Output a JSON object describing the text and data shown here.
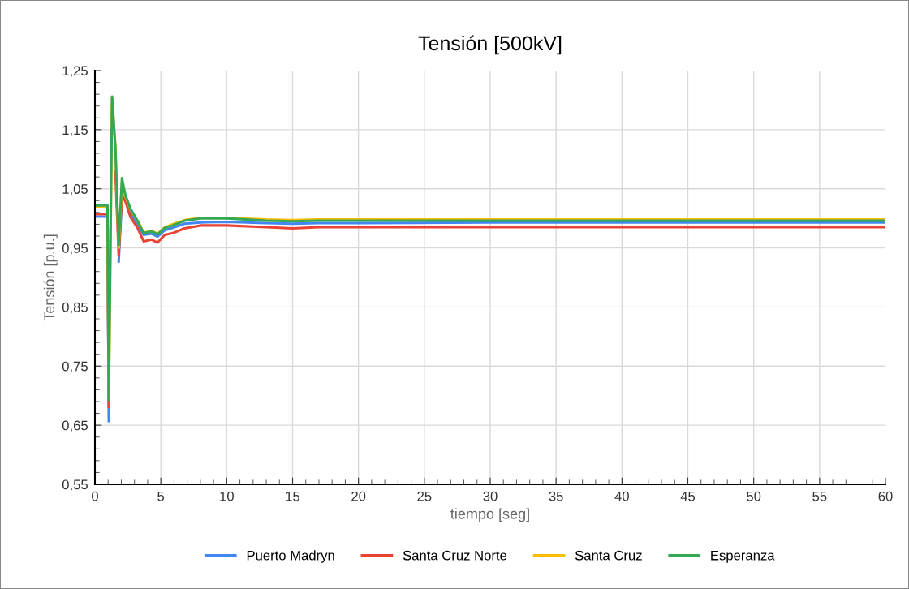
{
  "chart_data": {
    "type": "line",
    "title": "Tensión [500kV]",
    "xlabel": "tiempo [seg]",
    "ylabel": "Tensión [p.u.]",
    "x": [
      0,
      0.95,
      1.05,
      1.3,
      1.55,
      1.8,
      2.05,
      2.3,
      2.7,
      3.25,
      3.7,
      4.3,
      4.75,
      5.3,
      5.9,
      6.8,
      8,
      10,
      13,
      15,
      17,
      20,
      30,
      40,
      50,
      60
    ],
    "series": [
      {
        "name": "Puerto Madryn",
        "color": "#4285f4",
        "values": [
          1.003,
          1.003,
          0.657,
          null,
          null,
          0.927,
          1.035,
          1.03,
          1.008,
          0.99,
          0.972,
          0.974,
          0.969,
          0.98,
          0.984,
          0.991,
          0.993,
          0.994,
          0.992,
          0.991,
          0.992,
          0.992,
          0.993,
          0.993,
          0.993,
          0.993
        ]
      },
      {
        "name": "Santa Cruz Norte",
        "color": "#ea4335",
        "values": [
          1.007,
          1.007,
          0.681,
          null,
          1.08,
          0.937,
          1.04,
          1.03,
          1.002,
          0.983,
          0.961,
          0.964,
          0.959,
          0.972,
          0.975,
          0.983,
          0.988,
          0.988,
          0.985,
          0.983,
          0.985,
          0.985,
          0.985,
          0.985,
          0.985,
          0.985
        ]
      },
      {
        "name": "Santa Cruz",
        "color": "#fbbc04",
        "values": [
          1.02,
          1.02,
          0.695,
          1.205,
          1.12,
          0.95,
          1.062,
          1.038,
          1.015,
          0.995,
          0.976,
          0.979,
          0.974,
          0.985,
          0.99,
          0.997,
          1.001,
          1.001,
          0.998,
          0.997,
          0.998,
          0.998,
          0.998,
          0.998,
          0.998,
          0.998
        ]
      },
      {
        "name": "Esperanza",
        "color": "#34a853",
        "values": [
          1.022,
          1.022,
          0.693,
          1.206,
          1.12,
          0.955,
          1.068,
          1.04,
          1.016,
          0.995,
          0.975,
          0.978,
          0.973,
          0.984,
          0.988,
          0.996,
          1.0,
          1.0,
          0.996,
          0.995,
          0.996,
          0.996,
          0.996,
          0.996,
          0.996,
          0.996
        ]
      }
    ],
    "xlim": [
      0,
      60
    ],
    "xticks": [
      0,
      5,
      10,
      15,
      20,
      25,
      30,
      35,
      40,
      45,
      50,
      55,
      60
    ],
    "ylim": [
      0.55,
      1.25
    ],
    "yticks": [
      {
        "value": 0.55,
        "label": "0,55"
      },
      {
        "value": 0.65,
        "label": "0,65"
      },
      {
        "value": 0.75,
        "label": "0,75"
      },
      {
        "value": 0.85,
        "label": "0,85"
      },
      {
        "value": 0.95,
        "label": "0,95"
      },
      {
        "value": 1.05,
        "label": "1,05"
      },
      {
        "value": 1.15,
        "label": "1,15"
      },
      {
        "value": 1.25,
        "label": "1,25"
      }
    ],
    "grid": true,
    "legend": "bottom",
    "marker": "none",
    "line_style": "solid"
  }
}
